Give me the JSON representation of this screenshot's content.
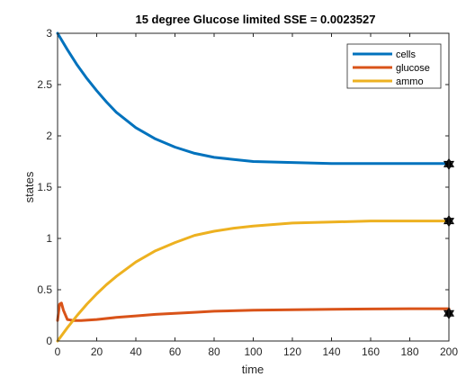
{
  "chart_data": {
    "type": "line",
    "title": "15 degree Glucose limited  SSE = 0.0023527",
    "xlabel": "time",
    "ylabel": "states",
    "xlim": [
      0,
      200
    ],
    "ylim": [
      0,
      3
    ],
    "xticks": [
      0,
      20,
      40,
      60,
      80,
      100,
      120,
      140,
      160,
      180,
      200
    ],
    "yticks": [
      0,
      0.5,
      1,
      1.5,
      2,
      2.5,
      3
    ],
    "ytick_labels": [
      "0",
      "0.5",
      "1",
      "1.5",
      "2",
      "2.5",
      "3"
    ],
    "grid": false,
    "legend_position": "top-right",
    "series": [
      {
        "name": "cells",
        "color": "#0072BD",
        "x": [
          0,
          5,
          10,
          15,
          20,
          25,
          30,
          40,
          50,
          60,
          70,
          80,
          90,
          100,
          120,
          140,
          160,
          180,
          200
        ],
        "y": [
          3.0,
          2.84,
          2.69,
          2.56,
          2.44,
          2.33,
          2.23,
          2.08,
          1.97,
          1.89,
          1.83,
          1.79,
          1.77,
          1.75,
          1.74,
          1.73,
          1.73,
          1.73,
          1.73
        ]
      },
      {
        "name": "glucose",
        "color": "#D95319",
        "x": [
          0,
          1,
          2,
          3,
          5,
          8,
          12,
          20,
          30,
          40,
          50,
          60,
          70,
          80,
          100,
          120,
          140,
          160,
          180,
          200
        ],
        "y": [
          0.2,
          0.36,
          0.37,
          0.3,
          0.21,
          0.2,
          0.2,
          0.21,
          0.23,
          0.245,
          0.26,
          0.27,
          0.28,
          0.29,
          0.3,
          0.305,
          0.31,
          0.312,
          0.315,
          0.315
        ]
      },
      {
        "name": "ammo",
        "color": "#EDB120",
        "x": [
          0,
          5,
          10,
          15,
          20,
          25,
          30,
          40,
          50,
          60,
          70,
          80,
          90,
          100,
          120,
          140,
          160,
          180,
          200
        ],
        "y": [
          0,
          0.13,
          0.25,
          0.36,
          0.46,
          0.55,
          0.63,
          0.77,
          0.88,
          0.96,
          1.03,
          1.07,
          1.1,
          1.12,
          1.15,
          1.16,
          1.17,
          1.17,
          1.17
        ]
      }
    ],
    "markers": [
      {
        "x": 200,
        "y": 1.725
      },
      {
        "x": 200,
        "y": 1.17
      },
      {
        "x": 200,
        "y": 0.27
      }
    ]
  }
}
